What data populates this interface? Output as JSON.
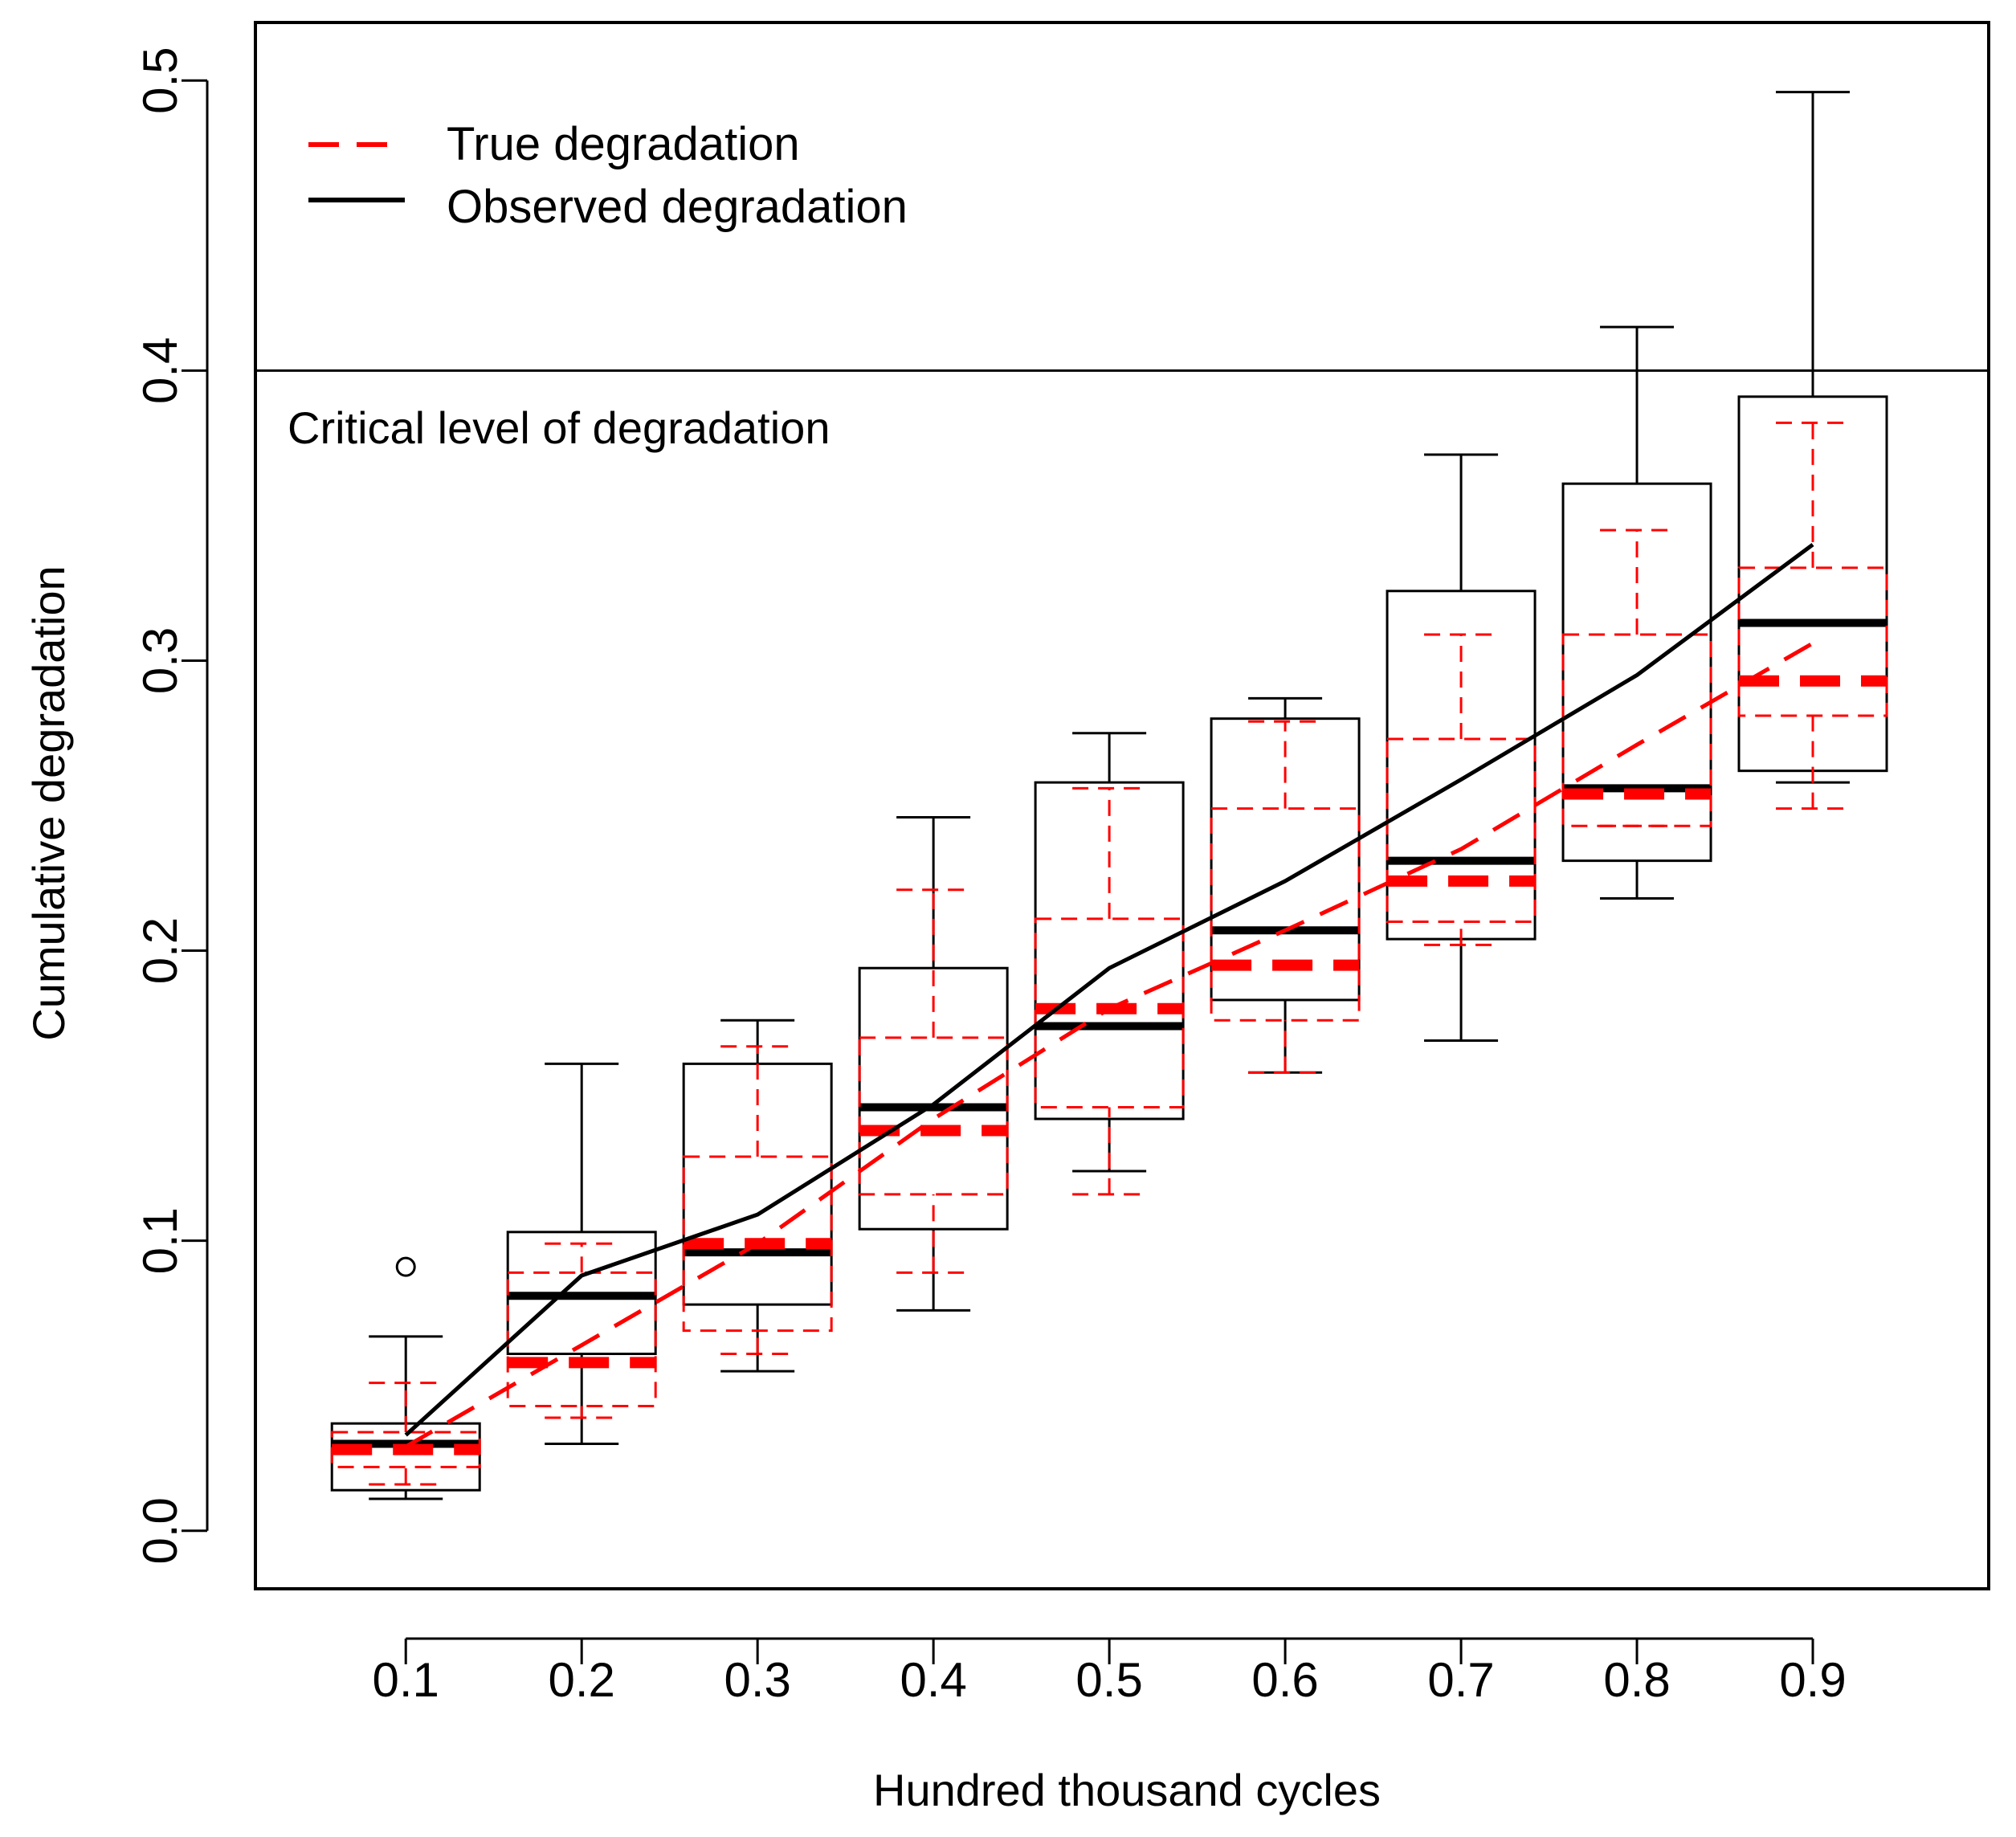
{
  "chart_data": {
    "type": "boxplot",
    "title": "",
    "xlabel": "Hundred thousand cycles",
    "ylabel": "Cumulative degradation",
    "x_ticks": [
      "0.1",
      "0.2",
      "0.3",
      "0.4",
      "0.5",
      "0.6",
      "0.7",
      "0.8",
      "0.9"
    ],
    "y_ticks": [
      "0.0",
      "0.1",
      "0.2",
      "0.3",
      "0.4",
      "0.5"
    ],
    "xlim": [
      0.0145,
      1.0
    ],
    "ylim": [
      -0.02,
      0.52
    ],
    "legend": {
      "position": "top-left",
      "entries": [
        {
          "label": "True degradation",
          "style": "dashed",
          "color": "#ff0000"
        },
        {
          "label": "Observed degradation",
          "style": "solid",
          "color": "#000000"
        }
      ]
    },
    "reference_line": {
      "y": 0.4,
      "label": "Critical level of degradation"
    },
    "series": [
      {
        "name": "Observed degradation",
        "color": "#000000",
        "line": "solid",
        "mean_line": [
          0.033,
          0.088,
          0.109,
          0.147,
          0.194,
          0.224,
          0.259,
          0.295,
          0.34
        ],
        "boxes": [
          {
            "x": 0.1,
            "whisker_low": 0.011,
            "q1": 0.014,
            "median": 0.03,
            "q3": 0.037,
            "whisker_high": 0.067,
            "outliers": [
              0.091
            ]
          },
          {
            "x": 0.2,
            "whisker_low": 0.03,
            "q1": 0.061,
            "median": 0.081,
            "q3": 0.103,
            "whisker_high": 0.161,
            "outliers": []
          },
          {
            "x": 0.3,
            "whisker_low": 0.055,
            "q1": 0.078,
            "median": 0.096,
            "q3": 0.161,
            "whisker_high": 0.176,
            "outliers": []
          },
          {
            "x": 0.4,
            "whisker_low": 0.076,
            "q1": 0.104,
            "median": 0.146,
            "q3": 0.194,
            "whisker_high": 0.246,
            "outliers": []
          },
          {
            "x": 0.5,
            "whisker_low": 0.124,
            "q1": 0.142,
            "median": 0.174,
            "q3": 0.258,
            "whisker_high": 0.275,
            "outliers": []
          },
          {
            "x": 0.6,
            "whisker_low": 0.158,
            "q1": 0.183,
            "median": 0.207,
            "q3": 0.28,
            "whisker_high": 0.287,
            "outliers": []
          },
          {
            "x": 0.7,
            "whisker_low": 0.169,
            "q1": 0.204,
            "median": 0.231,
            "q3": 0.324,
            "whisker_high": 0.371,
            "outliers": []
          },
          {
            "x": 0.8,
            "whisker_low": 0.218,
            "q1": 0.231,
            "median": 0.256,
            "q3": 0.361,
            "whisker_high": 0.415,
            "outliers": []
          },
          {
            "x": 0.9,
            "whisker_low": 0.258,
            "q1": 0.262,
            "median": 0.313,
            "q3": 0.391,
            "whisker_high": 0.496,
            "outliers": []
          }
        ]
      },
      {
        "name": "True degradation",
        "color": "#ff0000",
        "line": "dashed",
        "mean_line": [
          0.029,
          0.064,
          0.099,
          0.142,
          0.18,
          0.207,
          0.235,
          0.271,
          0.306
        ],
        "boxes": [
          {
            "x": 0.1,
            "whisker_low": 0.016,
            "q1": 0.022,
            "median": 0.028,
            "q3": 0.034,
            "whisker_high": 0.051,
            "outliers": []
          },
          {
            "x": 0.2,
            "whisker_low": 0.039,
            "q1": 0.043,
            "median": 0.058,
            "q3": 0.089,
            "whisker_high": 0.099,
            "outliers": []
          },
          {
            "x": 0.3,
            "whisker_low": 0.061,
            "q1": 0.069,
            "median": 0.099,
            "q3": 0.129,
            "whisker_high": 0.167,
            "outliers": []
          },
          {
            "x": 0.4,
            "whisker_low": 0.089,
            "q1": 0.116,
            "median": 0.138,
            "q3": 0.17,
            "whisker_high": 0.221,
            "outliers": []
          },
          {
            "x": 0.5,
            "whisker_low": 0.116,
            "q1": 0.146,
            "median": 0.18,
            "q3": 0.211,
            "whisker_high": 0.256,
            "outliers": []
          },
          {
            "x": 0.6,
            "whisker_low": 0.158,
            "q1": 0.176,
            "median": 0.195,
            "q3": 0.249,
            "whisker_high": 0.279,
            "outliers": []
          },
          {
            "x": 0.7,
            "whisker_low": 0.202,
            "q1": 0.21,
            "median": 0.224,
            "q3": 0.273,
            "whisker_high": 0.309,
            "outliers": []
          },
          {
            "x": 0.8,
            "whisker_low": 0.243,
            "q1": 0.243,
            "median": 0.254,
            "q3": 0.309,
            "whisker_high": 0.345,
            "outliers": []
          },
          {
            "x": 0.9,
            "whisker_low": 0.249,
            "q1": 0.281,
            "median": 0.293,
            "q3": 0.332,
            "whisker_high": 0.382,
            "outliers": []
          }
        ]
      }
    ]
  }
}
